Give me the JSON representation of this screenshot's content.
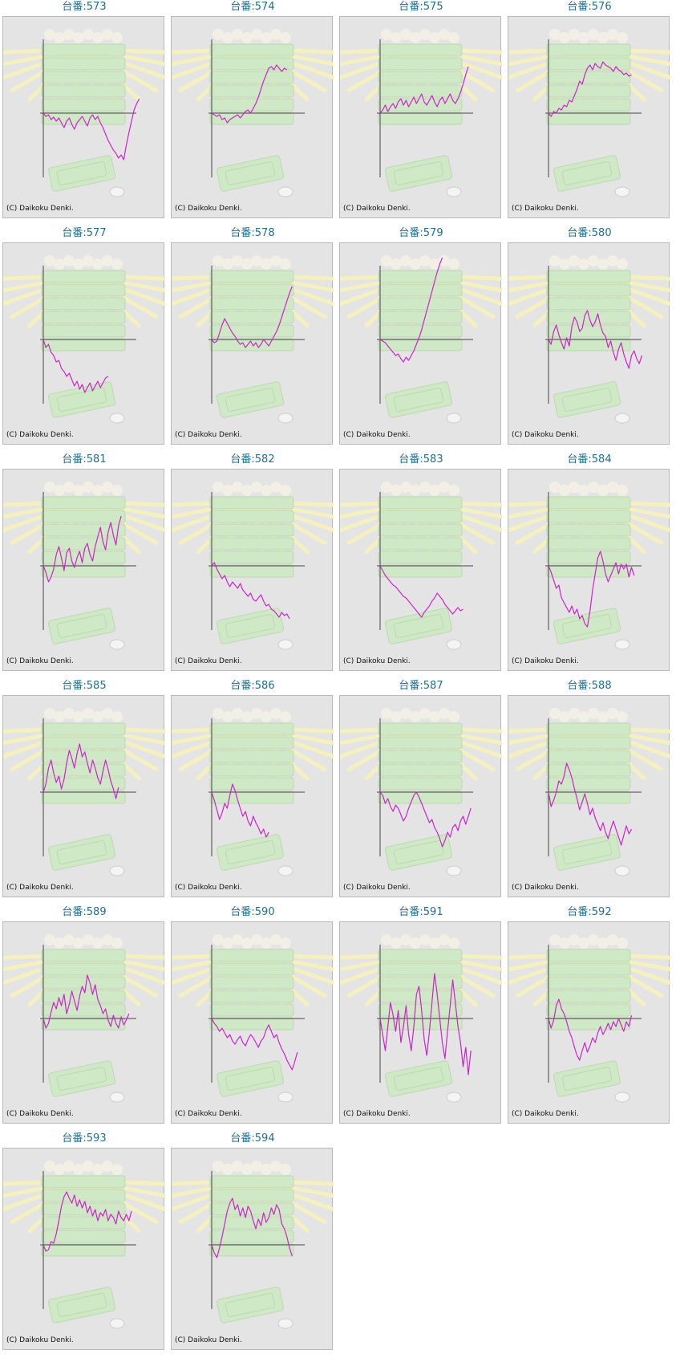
{
  "page": {
    "copyright_text": "(C) Daikoku Denki."
  },
  "colors": {
    "title": "#1f6e8c",
    "line": "#cc22cc",
    "axis": "#444444",
    "panel_bg": "#e4e4e4",
    "panel_border": "#b8b8b8",
    "decoration_green": "#cfe8c6",
    "decoration_rays": "#f5f0c0"
  },
  "chart_data": [
    {
      "type": "line",
      "title": "台番:573",
      "values": [
        0,
        -4,
        -2,
        -8,
        -5,
        -10,
        -6,
        -12,
        -18,
        -10,
        -6,
        -14,
        -20,
        -12,
        -8,
        -4,
        -10,
        -16,
        -6,
        -2,
        -8,
        -4,
        -12,
        -18,
        -26,
        -34,
        -40,
        -46,
        -50,
        -56,
        -52,
        -58,
        -40,
        -24,
        -10,
        4,
        12,
        18
      ]
    },
    {
      "type": "line",
      "title": "台番:574",
      "values": [
        0,
        -2,
        -4,
        -2,
        -8,
        -6,
        -12,
        -8,
        -6,
        -4,
        -2,
        -6,
        -2,
        2,
        4,
        0,
        6,
        12,
        20,
        30,
        40,
        48,
        56,
        58,
        54,
        60,
        56,
        52,
        56,
        54
      ]
    },
    {
      "type": "line",
      "title": "台番:575",
      "values": [
        0,
        4,
        10,
        2,
        8,
        12,
        6,
        14,
        18,
        10,
        16,
        8,
        14,
        20,
        12,
        18,
        24,
        14,
        10,
        16,
        22,
        14,
        8,
        16,
        20,
        12,
        18,
        24,
        16,
        12,
        18,
        26,
        36,
        48,
        58
      ]
    },
    {
      "type": "line",
      "title": "台番:576",
      "values": [
        0,
        -4,
        2,
        0,
        6,
        4,
        10,
        8,
        16,
        14,
        22,
        30,
        40,
        36,
        48,
        56,
        60,
        54,
        62,
        58,
        56,
        64,
        60,
        58,
        56,
        52,
        58,
        54,
        52,
        48,
        50,
        46,
        48
      ]
    },
    {
      "type": "line",
      "title": "台番:577",
      "values": [
        0,
        -10,
        -6,
        -16,
        -20,
        -28,
        -26,
        -36,
        -40,
        -46,
        -42,
        -50,
        -58,
        -52,
        -62,
        -56,
        -66,
        -60,
        -54,
        -64,
        -58,
        -52,
        -60,
        -54,
        -48,
        -46
      ]
    },
    {
      "type": "line",
      "title": "台番:578",
      "values": [
        0,
        -4,
        -2,
        8,
        18,
        26,
        20,
        14,
        8,
        4,
        -2,
        -6,
        -4,
        -10,
        -6,
        -2,
        -8,
        -4,
        -10,
        -6,
        0,
        -4,
        -8,
        -2,
        4,
        10,
        18,
        28,
        38,
        48,
        58,
        66
      ]
    },
    {
      "type": "line",
      "title": "台番:579",
      "values": [
        0,
        -2,
        -4,
        -8,
        -12,
        -16,
        -20,
        -18,
        -24,
        -28,
        -22,
        -26,
        -20,
        -14,
        -6,
        2,
        12,
        24,
        36,
        48,
        60,
        72,
        84,
        94,
        102
      ]
    },
    {
      "type": "line",
      "title": "台番:580",
      "values": [
        0,
        -6,
        10,
        18,
        6,
        -4,
        -12,
        2,
        -8,
        16,
        28,
        22,
        10,
        14,
        30,
        36,
        24,
        16,
        22,
        32,
        18,
        8,
        4,
        -10,
        -2,
        -16,
        -26,
        -12,
        -4,
        -18,
        -28,
        -36,
        -20,
        -14,
        -24,
        -30,
        -20
      ]
    },
    {
      "type": "line",
      "title": "台番:581",
      "values": [
        0,
        -8,
        -20,
        -14,
        -4,
        14,
        24,
        10,
        -6,
        16,
        22,
        6,
        -2,
        10,
        18,
        4,
        22,
        28,
        14,
        6,
        24,
        36,
        48,
        30,
        20,
        42,
        54,
        38,
        26,
        50,
        62
      ]
    },
    {
      "type": "line",
      "title": "台番:582",
      "values": [
        0,
        4,
        -4,
        -10,
        -16,
        -12,
        -20,
        -26,
        -20,
        -24,
        -28,
        -22,
        -30,
        -34,
        -38,
        -34,
        -42,
        -44,
        -40,
        -36,
        -44,
        -50,
        -48,
        -54,
        -56,
        -60,
        -64,
        -58,
        -62,
        -60,
        -66
      ]
    },
    {
      "type": "line",
      "title": "台番:583",
      "values": [
        0,
        -6,
        -12,
        -16,
        -20,
        -24,
        -26,
        -30,
        -34,
        -38,
        -40,
        -44,
        -48,
        -52,
        -56,
        -60,
        -64,
        -58,
        -54,
        -50,
        -44,
        -40,
        -34,
        -38,
        -42,
        -48,
        -52,
        -56,
        -60,
        -56,
        -52,
        -56,
        -54
      ]
    },
    {
      "type": "line",
      "title": "台番:584",
      "values": [
        0,
        -8,
        -18,
        -28,
        -24,
        -40,
        -46,
        -52,
        -58,
        -50,
        -60,
        -54,
        -66,
        -62,
        -72,
        -76,
        -56,
        -30,
        -10,
        10,
        18,
        6,
        -10,
        -20,
        -12,
        -4,
        4,
        -10,
        2,
        -4,
        2,
        -14,
        -2,
        -12
      ]
    },
    {
      "type": "line",
      "title": "台番:585",
      "values": [
        0,
        10,
        30,
        40,
        24,
        12,
        20,
        4,
        16,
        36,
        52,
        42,
        30,
        48,
        60,
        44,
        50,
        36,
        24,
        40,
        30,
        18,
        10,
        26,
        40,
        28,
        14,
        4,
        -8,
        6
      ]
    },
    {
      "type": "line",
      "title": "台番:586",
      "values": [
        0,
        -10,
        -22,
        -34,
        -26,
        -14,
        -20,
        -4,
        10,
        2,
        -10,
        -20,
        -30,
        -24,
        -36,
        -42,
        -30,
        -38,
        -44,
        -52,
        -46,
        -56,
        -50
      ]
    },
    {
      "type": "line",
      "title": "台番:587",
      "values": [
        0,
        -4,
        -14,
        -8,
        -18,
        -24,
        -16,
        -20,
        -28,
        -36,
        -30,
        -20,
        -12,
        -4,
        0,
        -6,
        -14,
        -22,
        -30,
        -38,
        -34,
        -44,
        -50,
        -58,
        -68,
        -60,
        -50,
        -56,
        -44,
        -40,
        -48,
        -36,
        -30,
        -40,
        -30,
        -20
      ]
    },
    {
      "type": "line",
      "title": "台番:588",
      "values": [
        0,
        -18,
        -10,
        0,
        14,
        10,
        20,
        36,
        28,
        18,
        4,
        -8,
        -22,
        -12,
        -2,
        -14,
        -28,
        -20,
        -32,
        -40,
        -48,
        -38,
        -50,
        -58,
        -46,
        -36,
        -46,
        -56,
        -66,
        -54,
        -42,
        -52,
        -46
      ]
    },
    {
      "type": "line",
      "title": "台番:589",
      "values": [
        0,
        -12,
        -6,
        8,
        20,
        12,
        26,
        16,
        30,
        6,
        18,
        34,
        22,
        10,
        28,
        40,
        32,
        54,
        44,
        30,
        42,
        24,
        16,
        6,
        12,
        -2,
        -10,
        4,
        -6,
        -12,
        2,
        -8,
        -2,
        6
      ]
    },
    {
      "type": "line",
      "title": "台番:590",
      "values": [
        0,
        -6,
        -10,
        -16,
        -12,
        -18,
        -24,
        -20,
        -28,
        -32,
        -26,
        -22,
        -30,
        -34,
        -26,
        -20,
        -24,
        -30,
        -36,
        -28,
        -24,
        -14,
        -8,
        -16,
        -24,
        -20,
        -30,
        -38,
        -44,
        -52,
        -58,
        -64,
        -54,
        -42
      ]
    },
    {
      "type": "line",
      "title": "台番:591",
      "values": [
        0,
        -20,
        -40,
        -10,
        20,
        4,
        -16,
        10,
        -30,
        -10,
        16,
        -20,
        -40,
        -10,
        30,
        40,
        10,
        -26,
        -46,
        -16,
        20,
        56,
        30,
        0,
        -30,
        -50,
        -16,
        16,
        48,
        20,
        -10,
        -30,
        -60,
        -36,
        -70,
        -40
      ]
    },
    {
      "type": "line",
      "title": "台番:592",
      "values": [
        0,
        -12,
        -2,
        16,
        24,
        12,
        6,
        -4,
        -16,
        -24,
        -36,
        -46,
        -52,
        -40,
        -30,
        -42,
        -34,
        -24,
        -30,
        -18,
        -10,
        -20,
        -14,
        -6,
        -14,
        -4,
        -10,
        0,
        -8,
        -16,
        -4,
        -10,
        4
      ]
    },
    {
      "type": "line",
      "title": "台番:593",
      "values": [
        0,
        -8,
        -6,
        4,
        2,
        14,
        30,
        48,
        60,
        66,
        58,
        52,
        62,
        48,
        56,
        46,
        54,
        40,
        48,
        36,
        44,
        30,
        40,
        36,
        44,
        30,
        38,
        34,
        26,
        42,
        34,
        30,
        38,
        30,
        42
      ]
    },
    {
      "type": "line",
      "title": "台番:594",
      "values": [
        0,
        -10,
        -16,
        -4,
        10,
        26,
        42,
        52,
        58,
        44,
        50,
        36,
        46,
        34,
        48,
        42,
        30,
        20,
        32,
        24,
        40,
        28,
        34,
        46,
        38,
        50,
        44,
        26,
        20,
        10,
        -4,
        -14
      ]
    }
  ]
}
